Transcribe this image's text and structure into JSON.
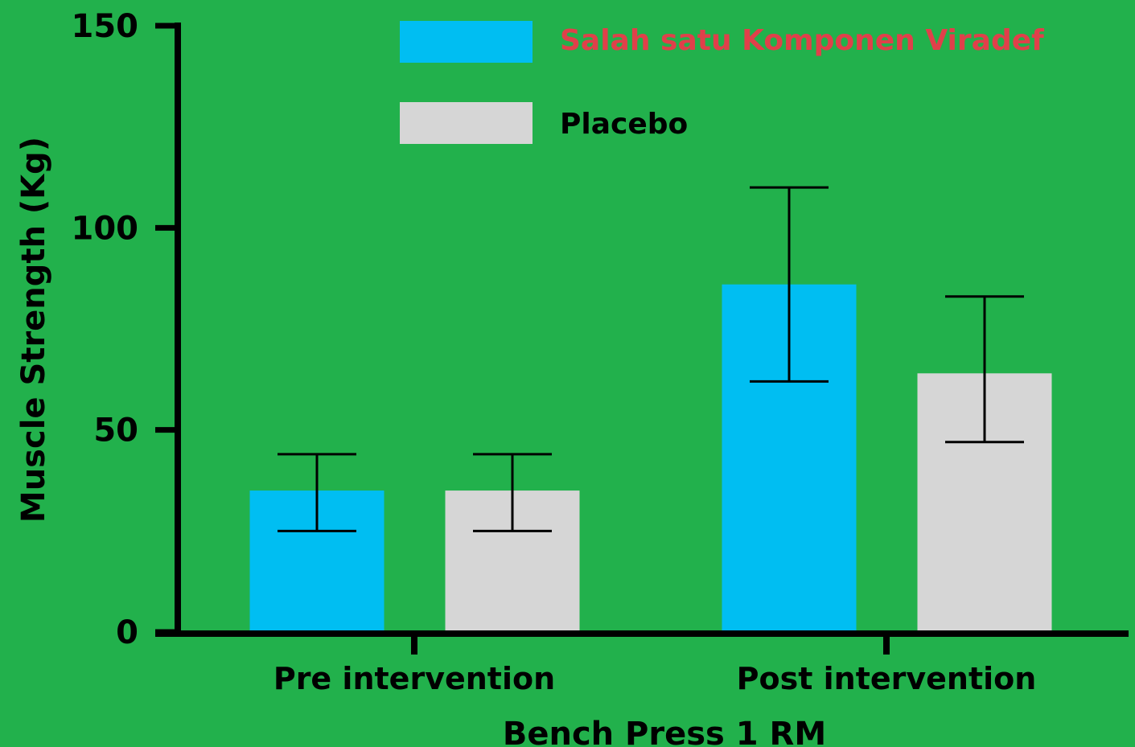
{
  "colors": {
    "background": "#22b14c",
    "series_1": "#00bef2",
    "series_2": "#d6d6d6",
    "legend_text_series_1": "#e0404a",
    "legend_text_series_2": "#000000",
    "axis": "#000000"
  },
  "chart_data": {
    "type": "bar",
    "title": "",
    "xlabel": "Bench Press 1 RM",
    "ylabel": "Muscle Strength (Kg)",
    "ylim": [
      0,
      150
    ],
    "yticks": [
      "0",
      "50",
      "100",
      "150"
    ],
    "categories": [
      "Pre intervention",
      "Post intervention"
    ],
    "series": [
      {
        "name": "Salah satu Komponen Viradef",
        "values": [
          35,
          86
        ],
        "error": [
          [
            25,
            44
          ],
          [
            62,
            110
          ]
        ]
      },
      {
        "name": "Placebo",
        "values": [
          35,
          64
        ],
        "error": [
          [
            25,
            44
          ],
          [
            47,
            83
          ]
        ]
      }
    ],
    "grid": false,
    "legend": "top-right",
    "error_bars": true
  }
}
